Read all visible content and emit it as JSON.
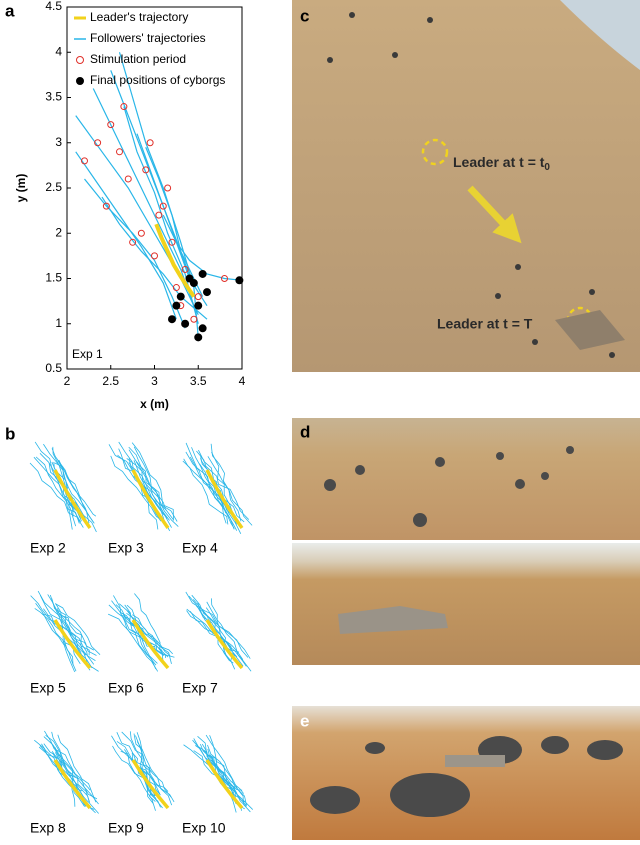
{
  "panels": {
    "a": "a",
    "b": "b",
    "c": "c",
    "d": "d",
    "e": "e"
  },
  "chart_data": {
    "type": "line",
    "xlabel": "x (m)",
    "ylabel": "y (m)",
    "annotation": "Exp 1",
    "xlim": [
      2,
      4
    ],
    "ylim": [
      0.5,
      4.5
    ],
    "xticks": [
      2,
      2.5,
      3,
      3.5,
      4
    ],
    "yticks": [
      0.5,
      1,
      1.5,
      2,
      2.5,
      3,
      3.5,
      4,
      4.5
    ],
    "series": [
      {
        "name": "Leader's trajectory",
        "color": "#f2d21b",
        "style": "line",
        "x": [
          3.02,
          3.08,
          3.15,
          3.22,
          3.3,
          3.38,
          3.45
        ],
        "y": [
          2.1,
          1.95,
          1.8,
          1.65,
          1.52,
          1.4,
          1.3
        ]
      },
      {
        "name": "Followers' trajectories",
        "color": "#29b6e8",
        "style": "lines",
        "paths": [
          {
            "x": [
              2.1,
              2.4,
              2.7,
              3.0,
              3.3,
              3.5
            ],
            "y": [
              3.3,
              2.9,
              2.5,
              2.0,
              1.5,
              1.1
            ]
          },
          {
            "x": [
              2.3,
              2.55,
              2.8,
              3.05,
              3.3,
              3.45
            ],
            "y": [
              3.6,
              3.1,
              2.6,
              2.1,
              1.6,
              1.2
            ]
          },
          {
            "x": [
              2.5,
              2.7,
              2.9,
              3.1,
              3.3,
              3.55
            ],
            "y": [
              3.8,
              3.3,
              2.8,
              2.3,
              1.8,
              1.3
            ]
          },
          {
            "x": [
              2.65,
              2.8,
              3.0,
              3.15,
              3.35,
              3.5
            ],
            "y": [
              3.4,
              2.9,
              2.45,
              2.0,
              1.55,
              1.0
            ]
          },
          {
            "x": [
              2.2,
              2.45,
              2.75,
              3.0,
              3.2,
              3.35
            ],
            "y": [
              2.6,
              2.3,
              2.0,
              1.7,
              1.3,
              0.95
            ]
          },
          {
            "x": [
              2.4,
              2.6,
              2.85,
              3.1,
              3.3,
              3.6
            ],
            "y": [
              2.4,
              2.1,
              1.8,
              1.55,
              1.3,
              1.05
            ]
          },
          {
            "x": [
              2.8,
              2.95,
              3.1,
              3.25,
              3.4,
              3.6
            ],
            "y": [
              3.1,
              2.7,
              2.3,
              1.9,
              1.5,
              1.2
            ]
          },
          {
            "x": [
              2.9,
              3.05,
              3.2,
              3.3,
              3.45,
              3.5
            ],
            "y": [
              2.95,
              2.6,
              2.2,
              1.8,
              1.4,
              0.85
            ]
          },
          {
            "x": [
              2.1,
              2.35,
              2.6,
              2.85,
              3.1,
              3.25
            ],
            "y": [
              2.9,
              2.55,
              2.2,
              1.85,
              1.45,
              1.05
            ]
          },
          {
            "x": [
              3.1,
              3.25,
              3.4,
              3.6,
              3.8,
              4.0
            ],
            "y": [
              2.2,
              1.9,
              1.7,
              1.55,
              1.5,
              1.48
            ]
          },
          {
            "x": [
              2.6,
              2.75,
              2.9,
              3.1,
              3.3,
              3.45
            ],
            "y": [
              4.0,
              3.5,
              3.0,
              2.5,
              1.9,
              1.4
            ]
          }
        ]
      },
      {
        "name": "Stimulation period",
        "color": "#e0302a",
        "style": "circle-open",
        "x": [
          2.35,
          2.5,
          2.7,
          2.9,
          3.05,
          3.15,
          2.6,
          2.85,
          3.2,
          3.35,
          2.45,
          2.75,
          3.0,
          3.25,
          3.5,
          2.2,
          3.1,
          3.3,
          2.95,
          3.45,
          3.8,
          2.65
        ],
        "y": [
          3.0,
          3.2,
          2.6,
          2.7,
          2.2,
          2.5,
          2.9,
          2.0,
          1.9,
          1.6,
          2.3,
          1.9,
          1.75,
          1.4,
          1.3,
          2.8,
          2.3,
          1.2,
          3.0,
          1.05,
          1.5,
          3.4
        ]
      },
      {
        "name": "Final positions of cyborgs",
        "color": "#000000",
        "style": "circle-filled",
        "x": [
          3.2,
          3.3,
          3.35,
          3.45,
          3.5,
          3.55,
          3.6,
          3.4,
          3.25,
          3.5,
          3.55,
          3.97
        ],
        "y": [
          1.05,
          1.3,
          1.0,
          1.45,
          1.2,
          0.95,
          1.35,
          1.5,
          1.2,
          0.85,
          1.55,
          1.48
        ]
      }
    ]
  },
  "experiments": [
    "Exp 2",
    "Exp 3",
    "Exp 4",
    "Exp 5",
    "Exp 6",
    "Exp 7",
    "Exp 8",
    "Exp 9",
    "Exp 10"
  ],
  "panel_c": {
    "label_start": "Leader at t = t",
    "label_start_sub": "0",
    "label_end": "Leader at t = T"
  }
}
